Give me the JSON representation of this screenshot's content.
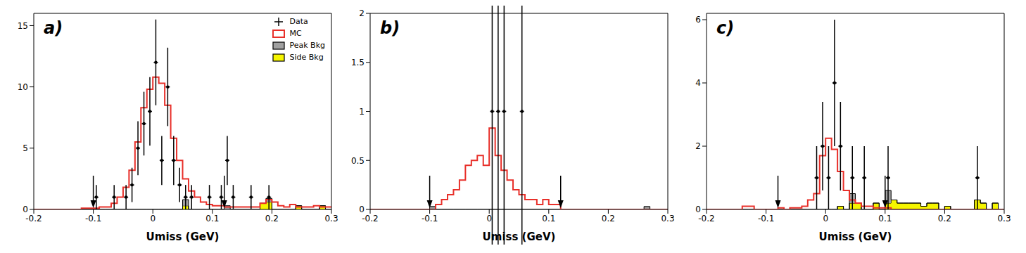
{
  "chart_data": [
    {
      "type": "histogram",
      "title": "a)",
      "xlabel": "Umiss (GeV)",
      "legend": "upper right",
      "xlim": [
        -0.2,
        0.3
      ],
      "xticks": [
        -0.2,
        -0.1,
        0,
        0.1,
        0.2,
        0.3
      ],
      "ylim": [
        0,
        16
      ],
      "yticks": [
        0,
        5,
        10,
        15
      ],
      "cuts": [
        -0.1,
        0.12
      ],
      "bins": [
        -0.2,
        -0.19,
        -0.18,
        -0.17,
        -0.16,
        -0.15,
        -0.14,
        -0.13,
        -0.12,
        -0.11,
        -0.1,
        -0.09,
        -0.08,
        -0.07,
        -0.06,
        -0.05,
        -0.04,
        -0.03,
        -0.02,
        -0.01,
        0,
        0.01,
        0.02,
        0.03,
        0.04,
        0.05,
        0.06,
        0.07,
        0.08,
        0.09,
        0.1,
        0.11,
        0.12,
        0.13,
        0.14,
        0.15,
        0.16,
        0.17,
        0.18,
        0.19,
        0.2,
        0.21,
        0.22,
        0.23,
        0.24,
        0.25,
        0.26,
        0.27,
        0.28,
        0.29,
        0.3
      ],
      "series": [
        {
          "name": "Data",
          "type": "scatter",
          "color": "#000000",
          "x": [
            -0.095,
            -0.065,
            -0.045,
            -0.035,
            -0.025,
            -0.015,
            -0.005,
            0.005,
            0.015,
            0.025,
            0.035,
            0.045,
            0.055,
            0.065,
            0.095,
            0.115,
            0.125,
            0.135,
            0.165,
            0.195
          ],
          "values": [
            1,
            1,
            1,
            2,
            5,
            7,
            8,
            12,
            4,
            10,
            4,
            2,
            1,
            1,
            1,
            1,
            4,
            1,
            1,
            1
          ],
          "errors": [
            1,
            1,
            1,
            1.4,
            2.2,
            2.6,
            2.8,
            3.5,
            2,
            3.2,
            2,
            1.4,
            1,
            1,
            1,
            1,
            2,
            1,
            1,
            1
          ]
        },
        {
          "name": "MC",
          "type": "step",
          "color": "#e8302a",
          "values": [
            0,
            0,
            0,
            0,
            0,
            0,
            0,
            0,
            0.1,
            0.1,
            0.1,
            0.2,
            0.2,
            0.5,
            1,
            1.8,
            3.2,
            5.5,
            8.3,
            9.8,
            10.8,
            10.3,
            8.5,
            5.8,
            4.0,
            2.5,
            1.5,
            1.0,
            0.6,
            0.4,
            0.3,
            0.3,
            0.2,
            0.2,
            0.2,
            0.2,
            0.2,
            0.2,
            0.5,
            0.8,
            0.6,
            0.3,
            0.2,
            0.4,
            0.2,
            0.2,
            0.2,
            0.3,
            0.2,
            0.2
          ]
        },
        {
          "name": "Peak Bkg",
          "type": "area",
          "color": "#a0a0a0",
          "values": [
            0,
            0,
            0,
            0,
            0,
            0,
            0,
            0,
            0,
            0,
            0,
            0,
            0,
            0,
            0,
            0,
            0,
            0,
            0,
            0,
            0,
            0,
            0,
            0,
            0,
            0.5,
            0,
            0,
            0,
            0,
            0,
            0,
            0.3,
            0,
            0,
            0,
            0,
            0,
            0,
            0.3,
            0,
            0,
            0,
            0,
            0,
            0,
            0,
            0,
            0,
            0
          ]
        },
        {
          "name": "Side Bkg",
          "type": "area",
          "color": "#f5f500",
          "values": [
            0,
            0,
            0,
            0,
            0,
            0,
            0,
            0,
            0,
            0,
            0,
            0,
            0,
            0,
            0,
            0,
            0,
            0,
            0,
            0,
            0,
            0,
            0,
            0,
            0,
            0.3,
            0,
            0,
            0,
            0,
            0,
            0,
            0,
            0,
            0,
            0,
            0,
            0,
            0.5,
            0.6,
            0,
            0,
            0,
            0,
            0.3,
            0,
            0,
            0,
            0.3,
            0
          ]
        }
      ]
    },
    {
      "type": "histogram",
      "title": "b)",
      "xlabel": "Umiss (GeV)",
      "xlim": [
        -0.2,
        0.3
      ],
      "xticks": [
        -0.2,
        -0.1,
        0,
        0.1,
        0.2,
        0.3
      ],
      "ylim": [
        0,
        2
      ],
      "yticks": [
        0,
        0.5,
        1,
        1.5,
        2
      ],
      "cuts": [
        -0.1,
        0.12
      ],
      "bins": [
        -0.2,
        -0.19,
        -0.18,
        -0.17,
        -0.16,
        -0.15,
        -0.14,
        -0.13,
        -0.12,
        -0.11,
        -0.1,
        -0.09,
        -0.08,
        -0.07,
        -0.06,
        -0.05,
        -0.04,
        -0.03,
        -0.02,
        -0.01,
        0,
        0.01,
        0.02,
        0.03,
        0.04,
        0.05,
        0.06,
        0.07,
        0.08,
        0.09,
        0.1,
        0.11,
        0.12,
        0.13,
        0.14,
        0.15,
        0.16,
        0.17,
        0.18,
        0.19,
        0.2,
        0.21,
        0.22,
        0.23,
        0.24,
        0.25,
        0.26,
        0.27,
        0.28,
        0.29,
        0.3
      ],
      "series": [
        {
          "name": "Data",
          "type": "scatter",
          "color": "#000000",
          "x": [
            0.005,
            0.015,
            0.025,
            0.055
          ],
          "values": [
            1,
            1,
            1,
            1
          ],
          "errors": [
            1.8,
            1.8,
            1.8,
            1.8
          ]
        },
        {
          "name": "MC",
          "type": "step",
          "color": "#e8302a",
          "values": [
            0,
            0,
            0,
            0,
            0,
            0,
            0,
            0,
            0,
            0,
            0,
            0.05,
            0.1,
            0.15,
            0.2,
            0.3,
            0.45,
            0.5,
            0.55,
            0.45,
            0.83,
            0.55,
            0.4,
            0.3,
            0.2,
            0.15,
            0.1,
            0.1,
            0.05,
            0.1,
            0.05,
            0.05,
            0,
            0,
            0,
            0,
            0,
            0,
            0,
            0,
            0,
            0,
            0,
            0,
            0,
            0,
            0,
            0,
            0,
            0
          ]
        },
        {
          "name": "Peak Bkg",
          "type": "area",
          "color": "#a0a0a0",
          "values": [
            0,
            0,
            0,
            0,
            0,
            0,
            0,
            0,
            0,
            0,
            0.03,
            0,
            0,
            0,
            0,
            0,
            0,
            0,
            0,
            0,
            0,
            0,
            0,
            0,
            0,
            0,
            0,
            0,
            0,
            0,
            0,
            0,
            0,
            0,
            0,
            0,
            0,
            0,
            0,
            0,
            0,
            0,
            0,
            0,
            0,
            0,
            0.03,
            0,
            0,
            0
          ]
        },
        {
          "name": "Side Bkg",
          "type": "area",
          "color": "#f5f500",
          "values": [
            0,
            0,
            0,
            0,
            0,
            0,
            0,
            0,
            0,
            0,
            0,
            0,
            0,
            0,
            0,
            0,
            0,
            0,
            0,
            0,
            0,
            0,
            0,
            0,
            0,
            0,
            0,
            0,
            0,
            0,
            0,
            0,
            0,
            0,
            0,
            0,
            0,
            0,
            0,
            0,
            0,
            0,
            0,
            0,
            0,
            0,
            0,
            0,
            0,
            0
          ]
        }
      ]
    },
    {
      "type": "histogram",
      "title": "c)",
      "xlabel": "Umiss (GeV)",
      "xlim": [
        -0.2,
        0.3
      ],
      "xticks": [
        -0.2,
        -0.1,
        0,
        0.1,
        0.2,
        0.3
      ],
      "ylim": [
        0,
        6.2
      ],
      "yticks": [
        0,
        2,
        4,
        6
      ],
      "cuts": [
        -0.08,
        0.1
      ],
      "bins": [
        -0.2,
        -0.19,
        -0.18,
        -0.17,
        -0.16,
        -0.15,
        -0.14,
        -0.13,
        -0.12,
        -0.11,
        -0.1,
        -0.09,
        -0.08,
        -0.07,
        -0.06,
        -0.05,
        -0.04,
        -0.03,
        -0.02,
        -0.01,
        0,
        0.01,
        0.02,
        0.03,
        0.04,
        0.05,
        0.06,
        0.07,
        0.08,
        0.09,
        0.1,
        0.11,
        0.12,
        0.13,
        0.14,
        0.15,
        0.16,
        0.17,
        0.18,
        0.19,
        0.2,
        0.21,
        0.22,
        0.23,
        0.24,
        0.25,
        0.26,
        0.27,
        0.28,
        0.29,
        0.3
      ],
      "series": [
        {
          "name": "Data",
          "type": "scatter",
          "color": "#000000",
          "x": [
            -0.015,
            -0.005,
            0.005,
            0.015,
            0.025,
            0.045,
            0.065,
            0.105,
            0.255
          ],
          "values": [
            1,
            2,
            1,
            4,
            2,
            1,
            1,
            1,
            1
          ],
          "errors": [
            1,
            1.4,
            1,
            2,
            1.4,
            1,
            1,
            1,
            1
          ]
        },
        {
          "name": "MC",
          "type": "step",
          "color": "#e8302a",
          "values": [
            0,
            0,
            0,
            0,
            0,
            0,
            0.1,
            0.1,
            0,
            0,
            0,
            0,
            0.05,
            0,
            0.05,
            0.05,
            0.1,
            0.3,
            0.5,
            1.7,
            2.25,
            1.9,
            1.2,
            0.6,
            0.3,
            0.2,
            0.1,
            0.1,
            0.05,
            0.05,
            0.05,
            0,
            0,
            0,
            0,
            0,
            0,
            0,
            0,
            0,
            0,
            0,
            0,
            0,
            0,
            0,
            0,
            0,
            0,
            0
          ]
        },
        {
          "name": "Peak Bkg",
          "type": "area",
          "color": "#a0a0a0",
          "values": [
            0,
            0,
            0,
            0,
            0,
            0,
            0,
            0,
            0,
            0,
            0,
            0,
            0,
            0,
            0,
            0,
            0,
            0,
            0,
            0,
            0,
            0,
            0,
            0,
            0.3,
            0,
            0,
            0,
            0,
            0,
            0.4,
            0,
            0,
            0,
            0,
            0,
            0,
            0,
            0,
            0,
            0,
            0,
            0,
            0,
            0,
            0,
            0,
            0,
            0,
            0
          ]
        },
        {
          "name": "Side Bkg",
          "type": "area",
          "color": "#f5f500",
          "values": [
            0,
            0,
            0,
            0,
            0,
            0,
            0,
            0,
            0,
            0,
            0,
            0,
            0,
            0,
            0,
            0,
            0,
            0,
            0,
            0,
            0,
            0,
            0.1,
            0,
            0.2,
            0.2,
            0,
            0,
            0.2,
            0,
            0.2,
            0.3,
            0.2,
            0.2,
            0.2,
            0.2,
            0.1,
            0.2,
            0.2,
            0,
            0.1,
            0,
            0,
            0,
            0,
            0.3,
            0.2,
            0,
            0.2,
            0
          ]
        }
      ]
    }
  ]
}
